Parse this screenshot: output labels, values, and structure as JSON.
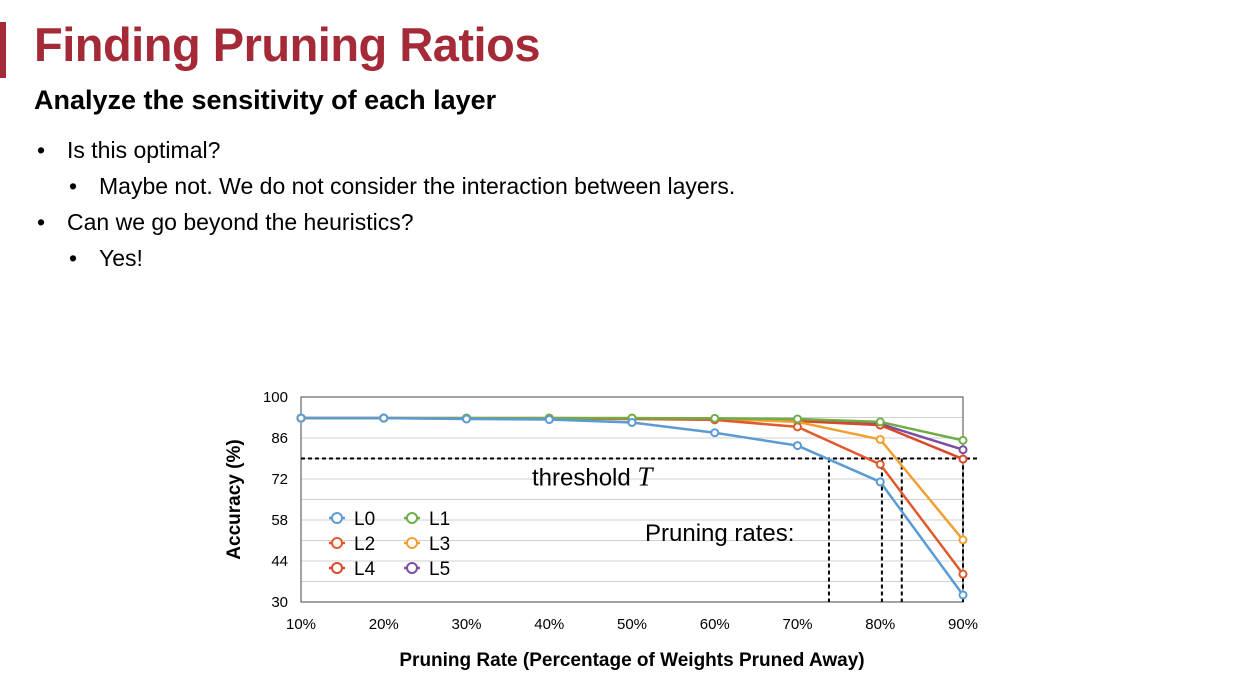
{
  "slide": {
    "title": "Finding Pruning Ratios",
    "subtitle": "Analyze the sensitivity of each layer",
    "bullets": [
      {
        "text": "Is this optimal?",
        "level": 1
      },
      {
        "text": "Maybe not. We do not consider the interaction between layers.",
        "level": 2
      },
      {
        "text": "Can we go beyond the heuristics?",
        "level": 1
      },
      {
        "text": "Yes!",
        "level": 2
      }
    ],
    "bullet_glyph": "•",
    "accent_color": "#a52a37"
  },
  "chart_data": {
    "type": "line",
    "xlabel": "Pruning Rate (Percentage of Weights Pruned Away)",
    "ylabel": "Accuracy (%)",
    "x": [
      10,
      20,
      30,
      40,
      50,
      60,
      70,
      80,
      90
    ],
    "x_tick_labels": [
      "10%",
      "20%",
      "30%",
      "40%",
      "50%",
      "60%",
      "70%",
      "80%",
      "90%"
    ],
    "xlim": [
      10,
      90
    ],
    "ylim": [
      30,
      100
    ],
    "y_ticks": [
      30,
      44,
      58,
      72,
      86,
      100
    ],
    "grid": true,
    "legend_placement": "lower-left",
    "series": [
      {
        "name": "L0",
        "color": "#5b9bd5",
        "values": [
          92.8,
          92.8,
          92.5,
          92.3,
          91.3,
          87.8,
          83.4,
          71.0,
          32.4
        ]
      },
      {
        "name": "L1",
        "color": "#70ad47",
        "values": [
          92.8,
          92.8,
          92.8,
          92.8,
          92.8,
          92.7,
          92.5,
          91.5,
          85.2
        ]
      },
      {
        "name": "L2",
        "color": "#e15a2b",
        "values": [
          92.8,
          92.8,
          92.6,
          92.6,
          92.5,
          92.2,
          89.8,
          77.0,
          39.5
        ]
      },
      {
        "name": "L3",
        "color": "#f0a030",
        "values": [
          92.8,
          92.8,
          92.8,
          92.8,
          92.8,
          92.6,
          91.5,
          85.5,
          51.2
        ]
      },
      {
        "name": "L4",
        "color": "#d9482b",
        "values": [
          92.8,
          92.8,
          92.7,
          92.7,
          92.6,
          92.4,
          91.8,
          90.4,
          78.8
        ]
      },
      {
        "name": "L5",
        "color": "#7a4fa0",
        "values": [
          92.8,
          92.8,
          92.8,
          92.8,
          92.7,
          92.6,
          92.3,
          90.8,
          82.0
        ]
      }
    ],
    "annotations": {
      "threshold_label": "threshold ",
      "threshold_symbol": "T",
      "threshold_value": 79,
      "pruning_rates_label": "Pruning rates:",
      "pruning_rate_markers": [
        73.8,
        80.2,
        82.6,
        90
      ]
    }
  }
}
